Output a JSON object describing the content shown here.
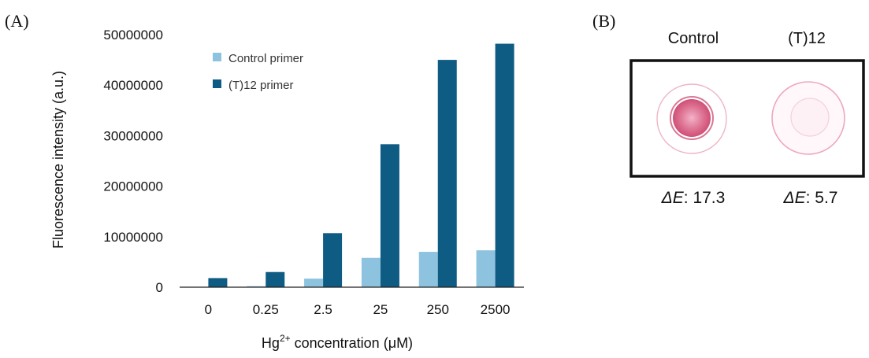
{
  "panel_a": {
    "label": "(A)"
  },
  "panel_b": {
    "label": "(B)",
    "headers": [
      "Control",
      "(T)12"
    ],
    "delta_e": [
      {
        "prefix": "ΔE",
        "value": ": 17.3"
      },
      {
        "prefix": "ΔE",
        "value": ": 5.7"
      }
    ],
    "well_colors": {
      "border": "#e8a0b4",
      "control_fill": "#d9587e",
      "t12_fill": "#f6d8e2"
    }
  },
  "chart_data": {
    "type": "bar",
    "categories": [
      "0",
      "0.25",
      "2.5",
      "25",
      "250",
      "2500"
    ],
    "series": [
      {
        "name": "Control  primer",
        "color": "#8ec3e0",
        "values": [
          0,
          200000,
          1700000,
          5800000,
          7000000,
          7300000
        ]
      },
      {
        "name": "(T)12  primer",
        "color": "#0e5b84",
        "values": [
          1800000,
          3000000,
          10700000,
          28300000,
          45000000,
          48200000
        ]
      }
    ],
    "ylim": [
      0,
      50000000
    ],
    "yticks": [
      "0",
      "10000000",
      "20000000",
      "30000000",
      "40000000",
      "50000000"
    ],
    "ylabel": "Fluorescence  intensity (a.u.)",
    "xlabel": {
      "pre": "Hg",
      "sup": "2+",
      "post": " concentration (μM)"
    },
    "legend_position": "top-left",
    "grid": false
  }
}
